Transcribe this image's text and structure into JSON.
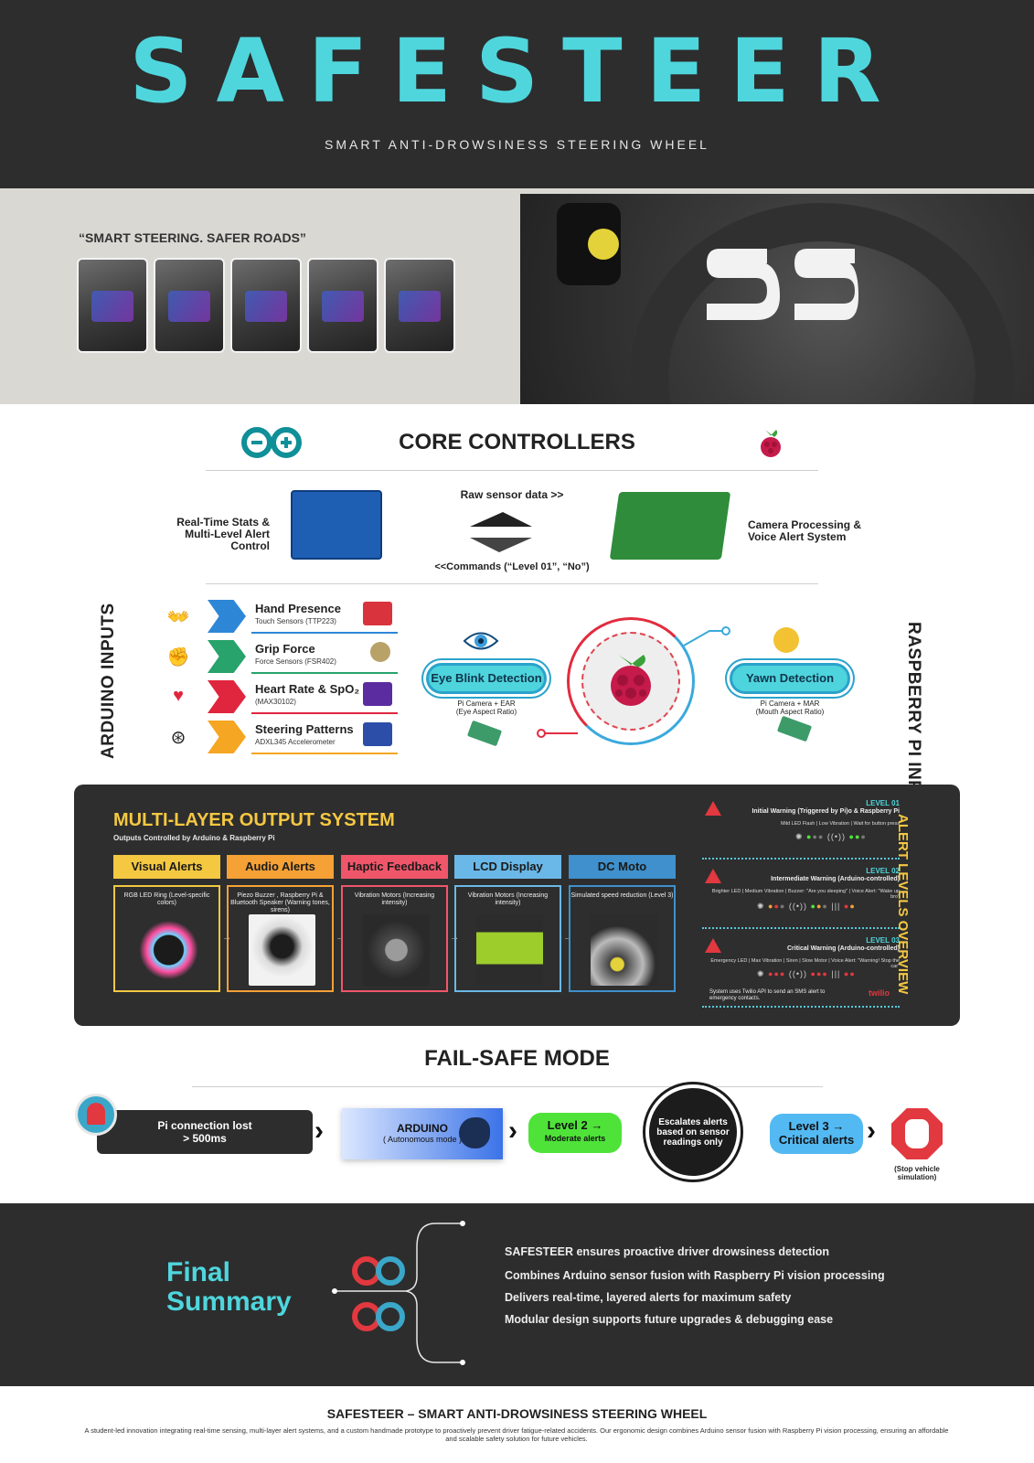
{
  "header": {
    "brand": "SAFESTEER",
    "subtitle": "SMART ANTI-DROWSINESS STEERING WHEEL"
  },
  "gallery": {
    "quote": "“SMART STEERING. SAFER ROADS”",
    "thumbnails": 5
  },
  "core_controllers": {
    "title": "CORE CONTROLLERS",
    "arduino_role": "Real-Time Stats & Multi-Level Alert Control",
    "pi_role": "Camera Processing & Voice Alert System",
    "raw_data": "Raw sensor data >>",
    "commands": "<<Commands (“Level 01”, “No”)"
  },
  "arduino_inputs": {
    "title": "ARDUINO INPUTS",
    "items": [
      {
        "label": "Hand Presence",
        "sub": "Touch Sensors (TTP223)",
        "color": "#2e86d6",
        "icon": "hands-icon"
      },
      {
        "label": "Grip Force",
        "sub": "Force Sensors (FSR402)",
        "color": "#27a36b",
        "icon": "fist-icon"
      },
      {
        "label": "Heart Rate & SpO₂",
        "sub": "(MAX30102)",
        "color": "#e0263f",
        "icon": "heart-icon"
      },
      {
        "label": "Steering Patterns",
        "sub": "ADXL345 Accelerometer",
        "color": "#f5a623",
        "icon": "steering-wheel-icon"
      }
    ]
  },
  "pi_inputs": {
    "title": "RASPBERRY PI INPUTS",
    "eye": {
      "label": "Eye Blink Detection",
      "sub1": "Pi Camera + EAR",
      "sub2": "(Eye Aspect Ratio)"
    },
    "yawn": {
      "label": "Yawn Detection",
      "sub1": "Pi Camera + MAR",
      "sub2": "(Mouth Aspect Ratio)"
    }
  },
  "output_system": {
    "title": "MULTI-LAYER OUTPUT SYSTEM",
    "subtitle": "Outputs Controlled by Arduino &  Raspberry Pi",
    "columns": [
      {
        "head": "Visual Alerts",
        "desc": "RGB LED Ring (Level-specific colors)",
        "color": "#f5c842"
      },
      {
        "head": "Audio Alerts",
        "desc": "Piezo Buzzer , Raspberry Pi & Bluetooth Speaker (Warning tones, sirens)",
        "color": "#f5a136"
      },
      {
        "head": "Haptic Feedback",
        "desc": "Vibration Motors (Increasing intensity)",
        "color": "#f0566a"
      },
      {
        "head": "LCD Display",
        "desc": "Vibration Motors (Increasing intensity)",
        "color": "#6ab8e8"
      },
      {
        "head": "DC Moto",
        "desc": "Simulated speed reduction (Level 3)",
        "color": "#3f90cc"
      }
    ]
  },
  "alert_levels": {
    "title": "ALERT LEVELS OVERVIEW",
    "levels": [
      {
        "tag": "LEVEL 01",
        "name": "Initial Warning (Triggered by Pi)o &  Raspberry Pi",
        "detail": "Mild LED Flash | Low Vibration | Wait for button press"
      },
      {
        "tag": "LEVEL 02",
        "name": "Intermediate Warning (Arduino-controlled)",
        "detail": "Brighter LED | Medium Vibration | Buzzer: \"Are you sleeping\" | Voice Alert: \"Wake up bro\""
      },
      {
        "tag": "LEVEL 03",
        "name": "Critical Warning (Arduino-controlled)",
        "detail": "Emergency LED | Max Vibration | Siren | Slow Motor | Voice Alert: \"Warning! Stop the car\""
      }
    ],
    "twilio_note": "System uses Twilio API to send an SMS alert to emergency contacts.",
    "twilio": "twilio"
  },
  "failsafe": {
    "title": "FAIL-SAFE MODE",
    "step1": "Pi connection lost",
    "step1b": "> 500ms",
    "step2": "ARDUINO",
    "step2b": "( Autonomous mode )",
    "step3": "Level 2 →",
    "step3b": "Moderate alerts",
    "step4": "Escalates alerts based on sensor readings only",
    "step5": "Level 3 →",
    "step5b": "Critical alerts",
    "stop": "(Stop vehicle simulation)"
  },
  "summary": {
    "title1": "Final",
    "title2": "Summary",
    "lines": [
      "SAFESTEER ensures proactive driver drowsiness detection",
      "Combines Arduino sensor fusion with Raspberry Pi vision processing",
      "Delivers real-time, layered alerts for maximum safety",
      "Modular design supports future upgrades & debugging ease"
    ]
  },
  "footer": {
    "title": "SAFESTEER – SMART ANTI-DROWSINESS STEERING WHEEL",
    "text": "A student-led innovation integrating real-time sensing, multi-layer alert systems, and a custom handmade prototype to proactively prevent driver fatigue-related accidents. Our ergonomic design combines Arduino sensor fusion with Raspberry Pi vision processing, ensuring an affordable and scalable safety solution for future vehicles."
  }
}
